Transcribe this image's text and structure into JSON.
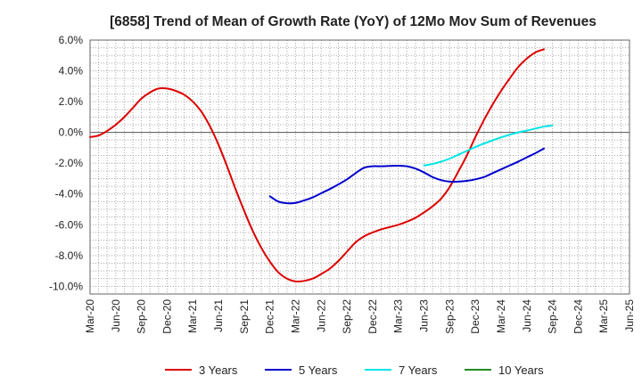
{
  "chart_data": {
    "type": "line",
    "title": "[6858]  Trend of Mean of Growth Rate (YoY) of 12Mo Mov Sum of Revenues",
    "xlabel": "",
    "ylabel": "",
    "ylim": [
      -10.5,
      6.0
    ],
    "y_ticks": [
      6.0,
      4.0,
      2.0,
      0.0,
      -2.0,
      -4.0,
      -6.0,
      -8.0,
      -10.0
    ],
    "y_tick_labels": [
      "6.0%",
      "4.0%",
      "2.0%",
      "0.0%",
      "-2.0%",
      "-4.0%",
      "-6.0%",
      "-8.0%",
      "-10.0%"
    ],
    "x_tick_labels": [
      "Mar-20",
      "Jun-20",
      "Sep-20",
      "Dec-20",
      "Mar-21",
      "Jun-21",
      "Sep-21",
      "Dec-21",
      "Mar-22",
      "Jun-22",
      "Sep-22",
      "Dec-22",
      "Mar-23",
      "Jun-23",
      "Sep-23",
      "Dec-23",
      "Mar-24",
      "Jun-24",
      "Sep-24",
      "Dec-24",
      "Mar-25",
      "Jun-25"
    ],
    "x_range_months": [
      0,
      63
    ],
    "grid": true,
    "legend_position": "bottom",
    "series": [
      {
        "name": "3 Years",
        "color": "#dd0000",
        "points": [
          [
            0,
            -0.3
          ],
          [
            1,
            -0.2
          ],
          [
            2,
            0.1
          ],
          [
            3,
            0.5
          ],
          [
            4,
            1.0
          ],
          [
            5,
            1.6
          ],
          [
            6,
            2.2
          ],
          [
            7,
            2.6
          ],
          [
            8,
            2.85
          ],
          [
            9,
            2.85
          ],
          [
            10,
            2.7
          ],
          [
            11,
            2.45
          ],
          [
            12,
            2.0
          ],
          [
            13,
            1.35
          ],
          [
            14,
            0.4
          ],
          [
            15,
            -0.8
          ],
          [
            16,
            -2.2
          ],
          [
            17,
            -3.7
          ],
          [
            18,
            -5.1
          ],
          [
            19,
            -6.4
          ],
          [
            20,
            -7.5
          ],
          [
            21,
            -8.4
          ],
          [
            22,
            -9.1
          ],
          [
            23,
            -9.5
          ],
          [
            24,
            -9.68
          ],
          [
            25,
            -9.65
          ],
          [
            26,
            -9.5
          ],
          [
            27,
            -9.2
          ],
          [
            28,
            -8.85
          ],
          [
            29,
            -8.35
          ],
          [
            30,
            -7.75
          ],
          [
            31,
            -7.15
          ],
          [
            32,
            -6.75
          ],
          [
            33,
            -6.5
          ],
          [
            34,
            -6.3
          ],
          [
            35,
            -6.15
          ],
          [
            36,
            -6.0
          ],
          [
            37,
            -5.8
          ],
          [
            38,
            -5.55
          ],
          [
            39,
            -5.2
          ],
          [
            40,
            -4.8
          ],
          [
            41,
            -4.3
          ],
          [
            42,
            -3.55
          ],
          [
            43,
            -2.55
          ],
          [
            44,
            -1.5
          ],
          [
            45,
            -0.3
          ],
          [
            46,
            0.8
          ],
          [
            47,
            1.8
          ],
          [
            48,
            2.7
          ],
          [
            49,
            3.5
          ],
          [
            50,
            4.25
          ],
          [
            51,
            4.8
          ],
          [
            52,
            5.2
          ],
          [
            53,
            5.4
          ]
        ]
      },
      {
        "name": "5 Years",
        "color": "#0000cc",
        "points": [
          [
            21,
            -4.15
          ],
          [
            22,
            -4.5
          ],
          [
            23,
            -4.6
          ],
          [
            24,
            -4.58
          ],
          [
            25,
            -4.42
          ],
          [
            26,
            -4.22
          ],
          [
            27,
            -3.95
          ],
          [
            28,
            -3.68
          ],
          [
            29,
            -3.38
          ],
          [
            30,
            -3.05
          ],
          [
            31,
            -2.65
          ],
          [
            32,
            -2.3
          ],
          [
            33,
            -2.2
          ],
          [
            34,
            -2.2
          ],
          [
            35,
            -2.18
          ],
          [
            36,
            -2.16
          ],
          [
            37,
            -2.2
          ],
          [
            38,
            -2.35
          ],
          [
            39,
            -2.6
          ],
          [
            40,
            -2.9
          ],
          [
            41,
            -3.1
          ],
          [
            42,
            -3.2
          ],
          [
            43,
            -3.2
          ],
          [
            44,
            -3.15
          ],
          [
            45,
            -3.05
          ],
          [
            46,
            -2.9
          ],
          [
            47,
            -2.65
          ],
          [
            48,
            -2.4
          ],
          [
            49,
            -2.15
          ],
          [
            50,
            -1.9
          ],
          [
            51,
            -1.62
          ],
          [
            52,
            -1.35
          ],
          [
            53,
            -1.05
          ]
        ]
      },
      {
        "name": "7 Years",
        "color": "#00e5e5",
        "points": [
          [
            39,
            -2.15
          ],
          [
            40,
            -2.05
          ],
          [
            41,
            -1.9
          ],
          [
            42,
            -1.7
          ],
          [
            43,
            -1.45
          ],
          [
            44,
            -1.2
          ],
          [
            45,
            -0.95
          ],
          [
            46,
            -0.72
          ],
          [
            47,
            -0.52
          ],
          [
            48,
            -0.32
          ],
          [
            49,
            -0.15
          ],
          [
            50,
            0.0
          ],
          [
            51,
            0.12
          ],
          [
            52,
            0.25
          ],
          [
            53,
            0.38
          ],
          [
            54,
            0.45
          ]
        ]
      },
      {
        "name": "10 Years",
        "color": "#228b22",
        "points": []
      }
    ]
  }
}
